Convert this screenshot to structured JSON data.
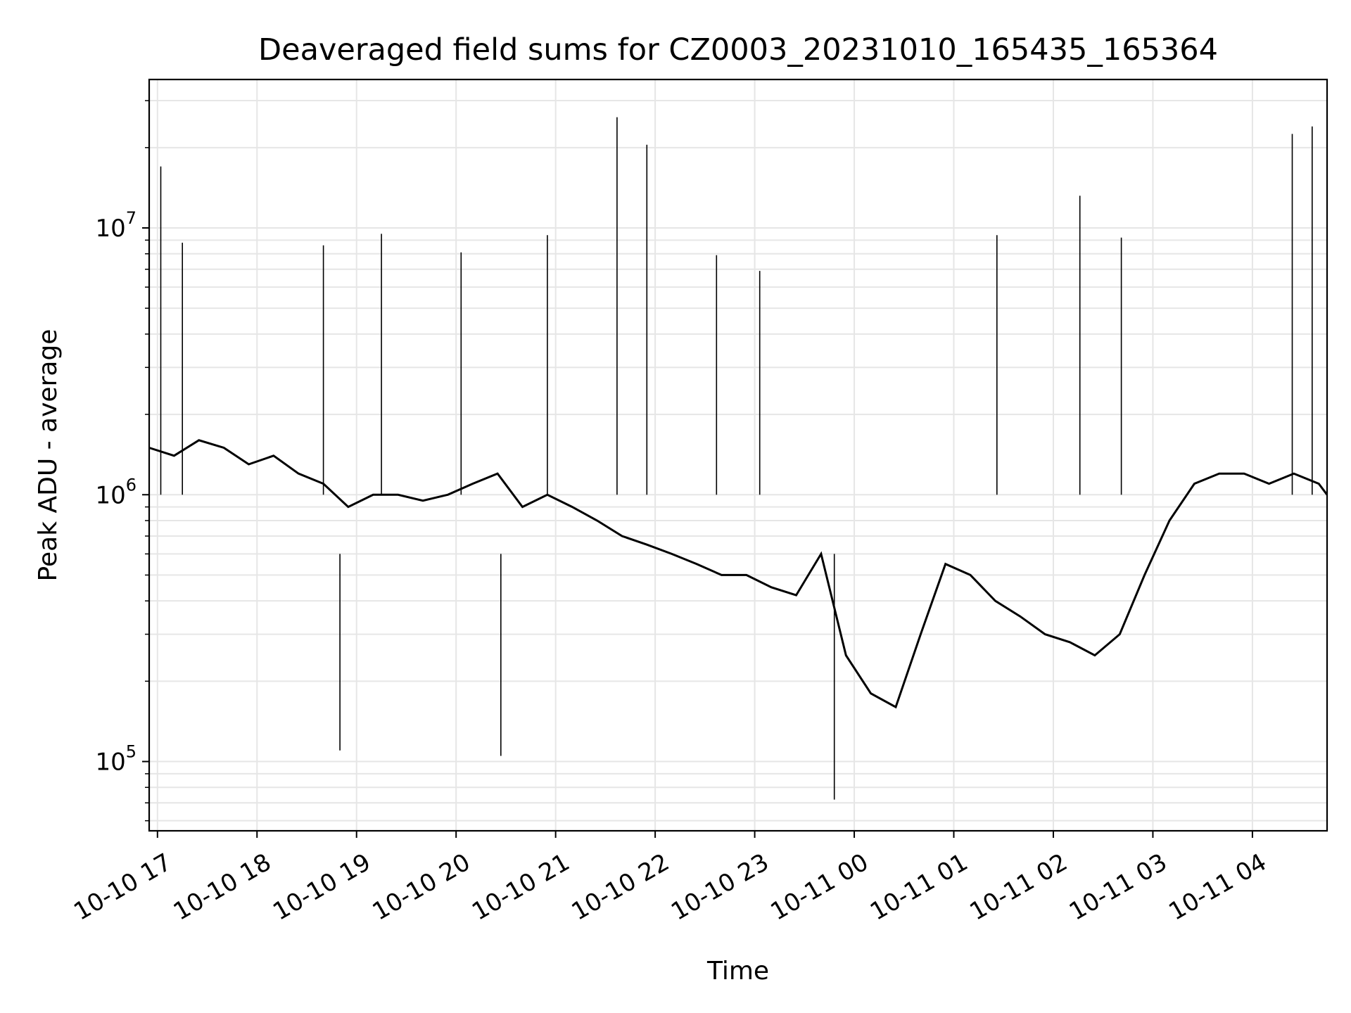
{
  "chart_data": {
    "type": "line",
    "title": "Deaveraged field sums for CZ0003_20231010_165435_165364",
    "xlabel": "Time",
    "ylabel": "Peak ADU - average",
    "x_scale": "time",
    "y_scale": "log",
    "xlim": [
      "2023-10-10 16:55",
      "2023-10-11 04:45"
    ],
    "ylim": [
      55000,
      36000000
    ],
    "grid": true,
    "legend": "none",
    "line_color": "#000000",
    "x_ticks": [
      {
        "time": "2023-10-10 17:00",
        "label": "10-10 17"
      },
      {
        "time": "2023-10-10 18:00",
        "label": "10-10 18"
      },
      {
        "time": "2023-10-10 19:00",
        "label": "10-10 19"
      },
      {
        "time": "2023-10-10 20:00",
        "label": "10-10 20"
      },
      {
        "time": "2023-10-10 21:00",
        "label": "10-10 21"
      },
      {
        "time": "2023-10-10 22:00",
        "label": "10-10 22"
      },
      {
        "time": "2023-10-10 23:00",
        "label": "10-10 23"
      },
      {
        "time": "2023-10-11 00:00",
        "label": "10-11 00"
      },
      {
        "time": "2023-10-11 01:00",
        "label": "10-11 01"
      },
      {
        "time": "2023-10-11 02:00",
        "label": "10-11 02"
      },
      {
        "time": "2023-10-11 03:00",
        "label": "10-11 03"
      },
      {
        "time": "2023-10-11 04:00",
        "label": "10-11 04"
      }
    ],
    "y_ticks": [
      {
        "value": 100000,
        "base": "10",
        "exp": "5"
      },
      {
        "value": 1000000,
        "base": "10",
        "exp": "6"
      },
      {
        "value": 10000000,
        "base": "10",
        "exp": "7"
      }
    ],
    "series": [
      {
        "x": [
          "2023-10-10 16:55",
          "2023-10-10 17:10",
          "2023-10-10 17:25",
          "2023-10-10 17:40",
          "2023-10-10 17:55",
          "2023-10-10 18:10",
          "2023-10-10 18:25",
          "2023-10-10 18:40",
          "2023-10-10 18:55",
          "2023-10-10 19:10",
          "2023-10-10 19:25",
          "2023-10-10 19:40",
          "2023-10-10 19:55",
          "2023-10-10 20:10",
          "2023-10-10 20:25",
          "2023-10-10 20:40",
          "2023-10-10 20:55",
          "2023-10-10 21:10",
          "2023-10-10 21:25",
          "2023-10-10 21:40",
          "2023-10-10 21:55",
          "2023-10-10 22:10",
          "2023-10-10 22:25",
          "2023-10-10 22:40",
          "2023-10-10 22:55",
          "2023-10-10 23:10",
          "2023-10-10 23:25",
          "2023-10-10 23:40",
          "2023-10-10 23:55",
          "2023-10-11 00:10",
          "2023-10-11 00:25",
          "2023-10-11 00:40",
          "2023-10-11 00:55",
          "2023-10-11 01:10",
          "2023-10-11 01:25",
          "2023-10-11 01:40",
          "2023-10-11 01:55",
          "2023-10-11 02:10",
          "2023-10-11 02:25",
          "2023-10-11 02:40",
          "2023-10-11 02:55",
          "2023-10-11 03:10",
          "2023-10-11 03:25",
          "2023-10-11 03:40",
          "2023-10-11 03:55",
          "2023-10-11 04:10",
          "2023-10-11 04:25",
          "2023-10-11 04:40",
          "2023-10-11 04:45"
        ],
        "y": [
          1500000,
          1400000,
          1600000,
          1500000,
          1300000,
          1400000,
          1200000,
          1100000,
          900000,
          1000000,
          1000000,
          950000,
          1000000,
          1100000,
          1200000,
          900000,
          1000000,
          900000,
          800000,
          700000,
          650000,
          600000,
          550000,
          500000,
          500000,
          450000,
          420000,
          600000,
          250000,
          180000,
          160000,
          300000,
          550000,
          500000,
          400000,
          350000,
          300000,
          280000,
          250000,
          300000,
          500000,
          800000,
          1100000,
          1200000,
          1200000,
          1100000,
          1200000,
          1100000,
          1000000
        ]
      }
    ],
    "spikes": [
      {
        "x": "2023-10-10 17:02",
        "y": 17000000
      },
      {
        "x": "2023-10-10 17:15",
        "y": 8800000
      },
      {
        "x": "2023-10-10 18:40",
        "y": 8600000
      },
      {
        "x": "2023-10-10 18:50",
        "y": 110000
      },
      {
        "x": "2023-10-10 19:15",
        "y": 9500000
      },
      {
        "x": "2023-10-10 20:03",
        "y": 8100000
      },
      {
        "x": "2023-10-10 20:27",
        "y": 105000
      },
      {
        "x": "2023-10-10 20:55",
        "y": 9400000
      },
      {
        "x": "2023-10-10 21:37",
        "y": 26000000
      },
      {
        "x": "2023-10-10 21:55",
        "y": 20500000
      },
      {
        "x": "2023-10-10 22:37",
        "y": 7900000
      },
      {
        "x": "2023-10-10 23:03",
        "y": 6900000
      },
      {
        "x": "2023-10-10 23:48",
        "y": 72000
      },
      {
        "x": "2023-10-11 01:26",
        "y": 9400000
      },
      {
        "x": "2023-10-11 02:16",
        "y": 13200000
      },
      {
        "x": "2023-10-11 02:41",
        "y": 9200000
      },
      {
        "x": "2023-10-11 04:24",
        "y": 22500000
      },
      {
        "x": "2023-10-11 04:36",
        "y": 24000000
      }
    ]
  }
}
